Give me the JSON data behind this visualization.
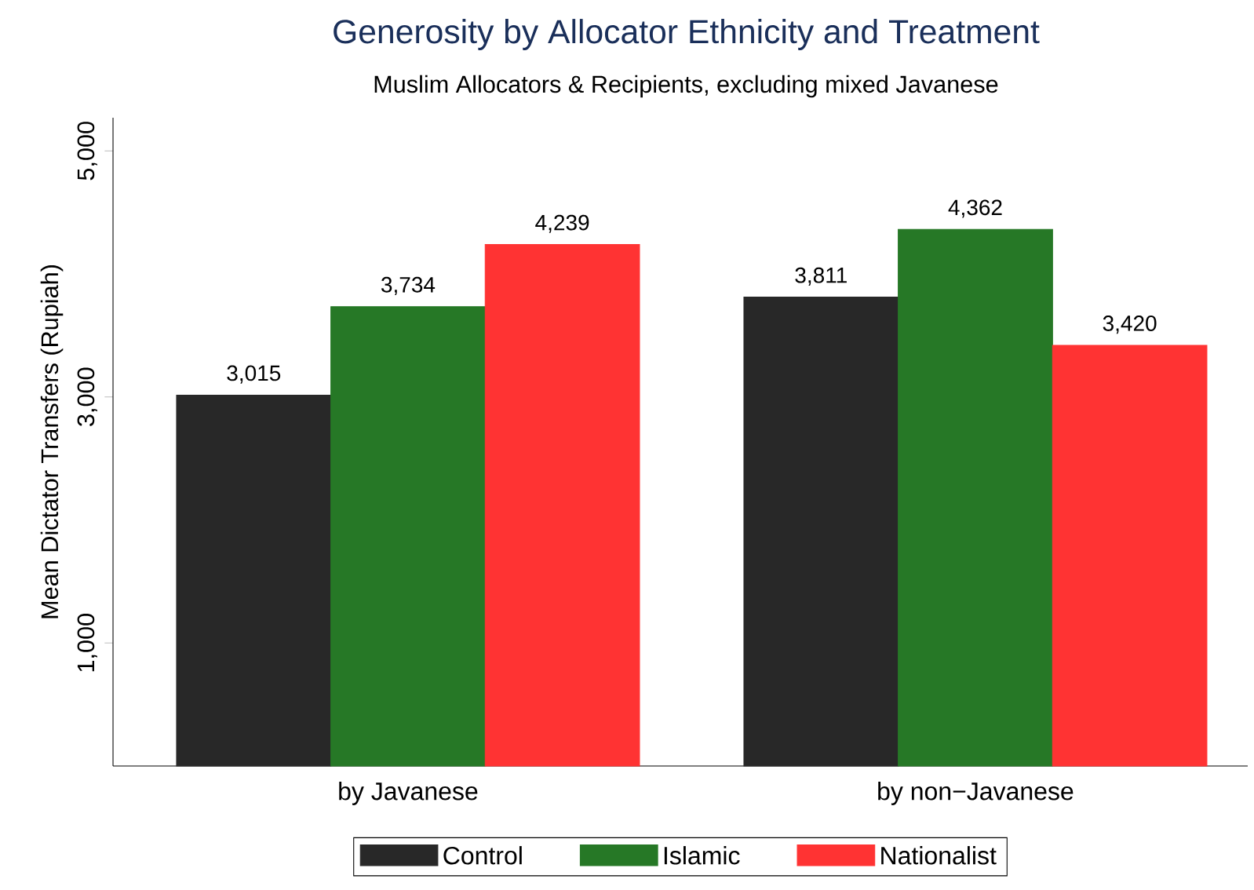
{
  "chart_data": {
    "type": "bar",
    "title": "Generosity by Allocator Ethnicity and Treatment",
    "subtitle": "Muslim Allocators & Recipients, excluding mixed Javanese",
    "ylabel": "Mean Dictator Transfers (Rupiah)",
    "categories": [
      "by Javanese",
      "by non−Javanese"
    ],
    "series": [
      {
        "name": "Control",
        "color": "#282828",
        "values": [
          3015,
          3811
        ],
        "value_labels": [
          "3,015",
          "3,811"
        ]
      },
      {
        "name": "Islamic",
        "color": "#267826",
        "values": [
          3734,
          4362
        ],
        "value_labels": [
          "3,734",
          "4,362"
        ]
      },
      {
        "name": "Nationalist",
        "color": "#ff3333",
        "values": [
          4239,
          3420
        ],
        "value_labels": [
          "4,239",
          "3,420"
        ]
      }
    ],
    "ylim": [
      0,
      5270
    ],
    "yticks": [
      {
        "value": 1000,
        "label": "1,000"
      },
      {
        "value": 3000,
        "label": "3,000"
      },
      {
        "value": 5000,
        "label": "5,000"
      }
    ],
    "grid": false,
    "legend": "bottom"
  }
}
